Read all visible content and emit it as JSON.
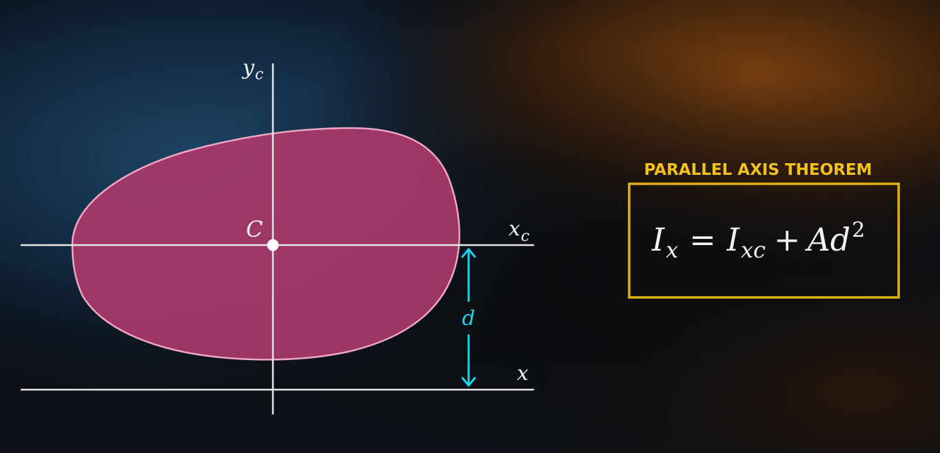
{
  "theorem": {
    "title": "PARALLEL AXIS THEOREM",
    "equation": {
      "lhs_base": "I",
      "lhs_sub": "x",
      "equals": "=",
      "term1_base": "I",
      "term1_sub": "xc",
      "plus": "+",
      "term2_base": "Ad",
      "term2_sup": "2"
    }
  },
  "diagram": {
    "centroid_label": "C",
    "centroid_axis_y_base": "y",
    "centroid_axis_y_sub": "c",
    "centroid_axis_x_base": "x",
    "centroid_axis_x_sub": "c",
    "reference_axis_label": "x",
    "distance_label": "d"
  },
  "colors": {
    "title": "#f2c21b",
    "box_border": "#e0b215",
    "shape_fill": "#a8396b",
    "shape_stroke": "#f0a7c4",
    "axis": "#e8e8e8",
    "distance": "#19d3ec",
    "text": "#f2f2f2"
  }
}
